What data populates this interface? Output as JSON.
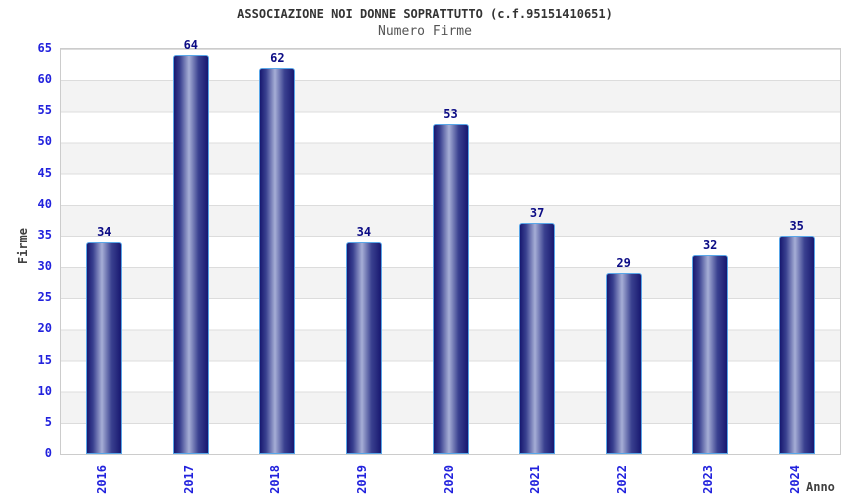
{
  "header": {
    "title": "ASSOCIAZIONE NOI DONNE SOPRATTUTTO (c.f.95151410651)",
    "subtitle": "Numero Firme"
  },
  "chart_data": {
    "type": "bar",
    "title": "ASSOCIAZIONE NOI DONNE SOPRATTUTTO (c.f.95151410651)",
    "subtitle": "Numero Firme",
    "categories": [
      "2016",
      "2017",
      "2018",
      "2019",
      "2020",
      "2021",
      "2022",
      "2023",
      "2024"
    ],
    "values": [
      34,
      64,
      62,
      34,
      53,
      37,
      29,
      32,
      35
    ],
    "xlabel": "Anno",
    "ylabel": "Firme",
    "ylim": [
      0,
      65
    ],
    "ytick_step": 5,
    "grid": "horizontal-bands-alternating",
    "legend": "none",
    "bar_labels_shown": true
  },
  "colors": {
    "bar_dark": "#181870",
    "bar_mid": "#3a4190",
    "bar_light": "#a6aed6",
    "bar_border": "#58a6e8",
    "tick_label": "#2222dd",
    "value_label": "#0d0d85",
    "title_text": "#333333",
    "subtitle_text": "#555555",
    "band_gray": "#f3f3f3",
    "band_white": "#ffffff",
    "plot_border": "#cccccc",
    "grid_line": "#dcdcdc"
  }
}
